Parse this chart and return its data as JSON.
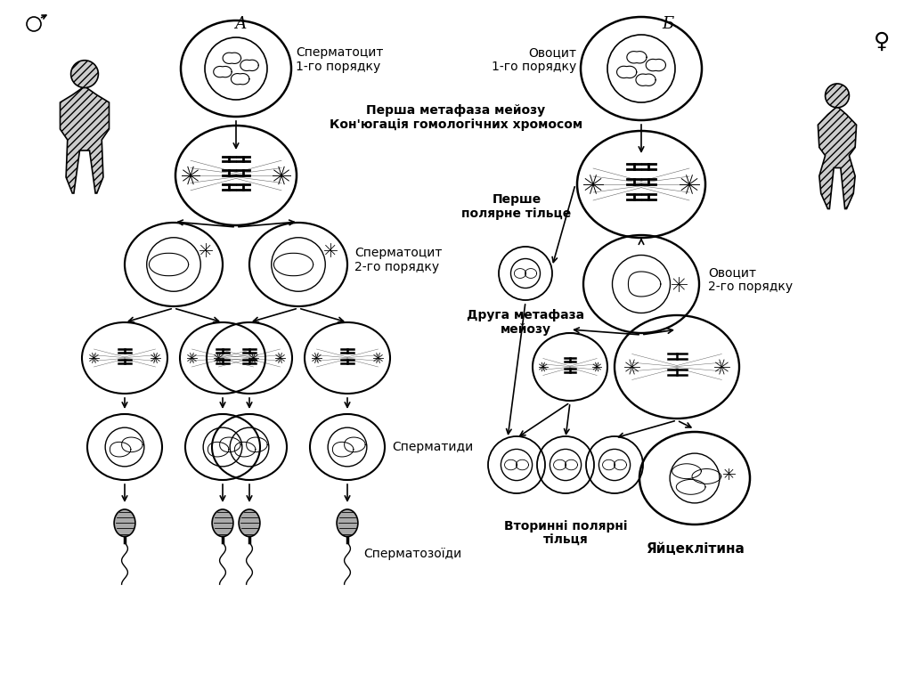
{
  "background_color": "#ffffff",
  "title_A": "А",
  "title_B": "Б",
  "label_sperm1": "Сперматоцит\n1-го порядку",
  "label_oocyte1": "Овоцит\n1-го порядку",
  "label_meta1": "Перша метафаза мейозу\nКон'югація гомологічних хромосом",
  "label_sperm2": "Сперматоцит\n2-го порядку",
  "label_oocyte2": "Овоцит\n2-го порядку",
  "label_polar1": "Перше\nполярне тільце",
  "label_meta2": "Друга метафаза\nмейозу",
  "label_spermatids": "Сперматиди",
  "label_spermatozoa": "Сперматозоїди",
  "label_polar2": "Вторинні полярні\nтільця",
  "label_egg": "Яйцеклітина",
  "figw": 10.24,
  "figh": 7.67,
  "dpi": 100
}
